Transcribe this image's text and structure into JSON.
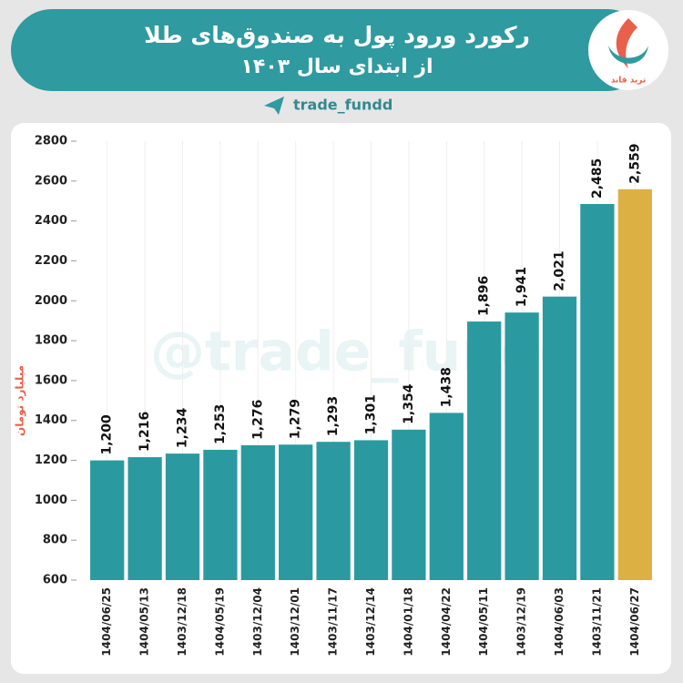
{
  "chart_data": {
    "type": "bar",
    "title": "رکورد ورود پول به صندوق‌های طلا",
    "subtitle": "از ابتدای سال ۱۴۰۳",
    "handle": "trade_fundd",
    "watermark": "@trade_fundd",
    "logo_text": "ترید فاند",
    "y_label": "میلیارد تومان",
    "categories": [
      "1404/06/25",
      "1404/05/13",
      "1403/12/18",
      "1404/05/19",
      "1403/12/04",
      "1403/12/01",
      "1403/11/17",
      "1403/12/14",
      "1404/01/18",
      "1404/04/22",
      "1404/05/11",
      "1403/12/19",
      "1404/06/03",
      "1403/11/21",
      "1404/06/27"
    ],
    "series": [
      {
        "colors": [
          "#2a9aa0",
          "#2a9aa0",
          "#2a9aa0",
          "#2a9aa0",
          "#2a9aa0",
          "#2a9aa0",
          "#2a9aa0",
          "#2a9aa0",
          "#2a9aa0",
          "#2a9aa0",
          "#2a9aa0",
          "#2a9aa0",
          "#2a9aa0",
          "#2a9aa0",
          "#ddb044"
        ],
        "values": [
          1200,
          1216,
          1234,
          1253,
          1276,
          1279,
          1293,
          1301,
          1354,
          1438,
          1896,
          1941,
          2021,
          2485,
          2559
        ],
        "value_labels": [
          "1,200",
          "1,216",
          "1,234",
          "1,253",
          "1,276",
          "1,279",
          "1,293",
          "1,301",
          "1,354",
          "1,438",
          "1,896",
          "1,941",
          "2,021",
          "2,485",
          "2,559"
        ]
      }
    ],
    "ylim": [
      600,
      2800
    ],
    "yticks": [
      600,
      800,
      1000,
      1200,
      1400,
      1600,
      1800,
      2000,
      2200,
      2400,
      2600,
      2800
    ]
  }
}
